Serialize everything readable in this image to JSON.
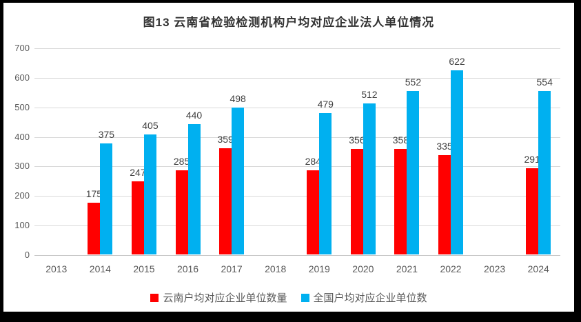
{
  "chart_data": {
    "type": "bar",
    "title": "图13  云南省检验检测机构户均对应企业法人单位情况",
    "categories": [
      "2013",
      "2014",
      "2015",
      "2016",
      "2017",
      "2018",
      "2019",
      "2020",
      "2021",
      "2022",
      "2023",
      "2024"
    ],
    "series": [
      {
        "name": "云南户均对应企业单位数量",
        "color": "#ff0000",
        "values": [
          null,
          175,
          247,
          285,
          359,
          null,
          284,
          356,
          358,
          335,
          null,
          291
        ]
      },
      {
        "name": "全国户均对应企业单位数",
        "color": "#00b0f0",
        "values": [
          null,
          375,
          405,
          440,
          498,
          null,
          479,
          512,
          552,
          622,
          null,
          554
        ]
      }
    ],
    "ylim": [
      0,
      700
    ],
    "yticks": [
      0,
      100,
      200,
      300,
      400,
      500,
      600,
      700
    ],
    "grid": true,
    "legend_position": "bottom",
    "data_labels": true
  },
  "colors": {
    "background": "#ffffff",
    "frame_border": "#000000",
    "gridline": "#d9d9d9",
    "axis_text": "#595959",
    "data_label_text": "#404040",
    "title_text": "#333333"
  }
}
